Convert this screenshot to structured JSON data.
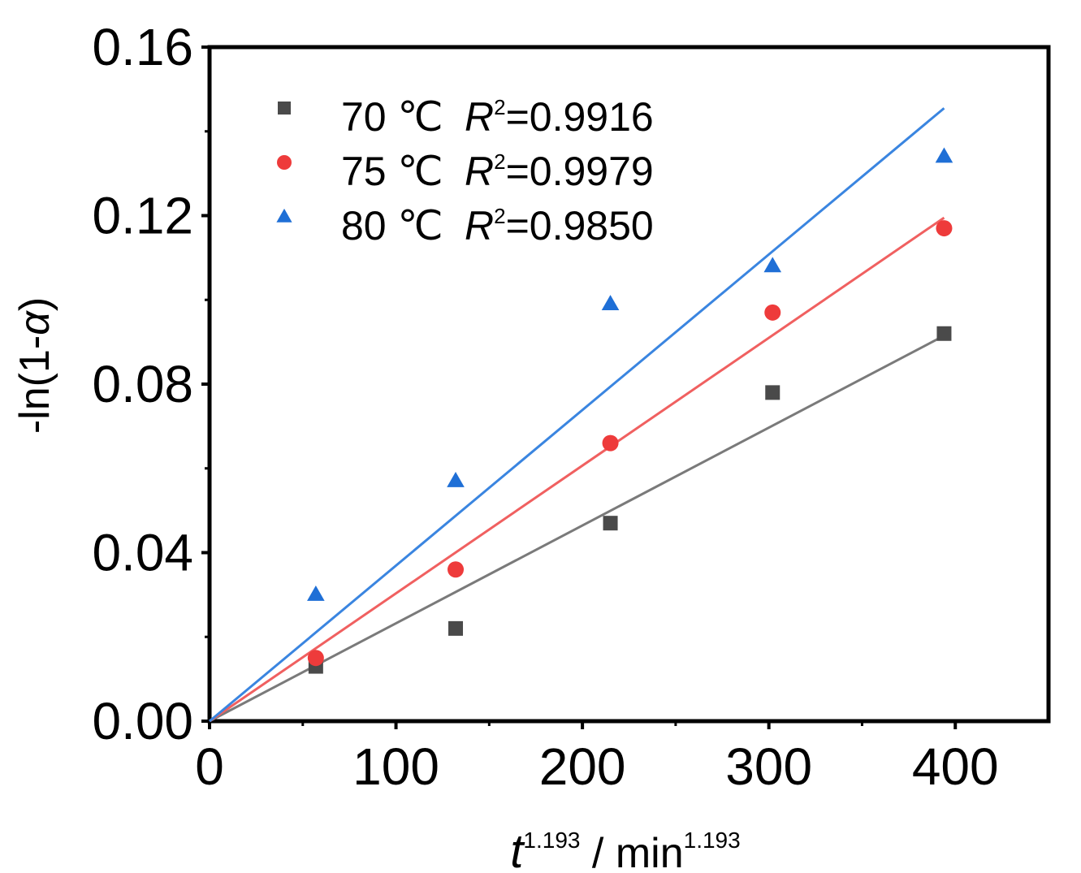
{
  "chart_data": {
    "type": "scatter",
    "title": "",
    "xlabel": {
      "base": "t",
      "base_sup": "1.193",
      "unit": " / min",
      "unit_sup": "1.193"
    },
    "ylabel": {
      "prefix": "-ln(1-",
      "symbol": "α",
      "suffix": ")"
    },
    "xlim": [
      0,
      450
    ],
    "ylim": [
      0,
      0.16
    ],
    "xticks": [
      0,
      100,
      200,
      300,
      400
    ],
    "xtick_labels": [
      "0",
      "100",
      "200",
      "300",
      "400"
    ],
    "yticks": [
      0,
      0.04,
      0.08,
      0.12,
      0.16
    ],
    "ytick_labels": [
      "0.00",
      "0.04",
      "0.08",
      "0.12",
      "0.16"
    ],
    "grid": false,
    "legend_position": "top-left",
    "series": [
      {
        "name": "70 ℃",
        "r2_label": "R",
        "r2_sup": "2",
        "r2_value": "=0.9916",
        "marker": "square",
        "color": "#4a4a4a",
        "line_color": "#7a7a7a",
        "x": [
          57,
          132,
          215,
          302,
          394
        ],
        "y": [
          0.013,
          0.022,
          0.047,
          0.078,
          0.092
        ],
        "fit": {
          "x": [
            0,
            394
          ],
          "y": [
            0,
            0.0915
          ]
        }
      },
      {
        "name": "75 ℃",
        "r2_label": "R",
        "r2_sup": "2",
        "r2_value": "=0.9979",
        "marker": "circle",
        "color": "#ee3b3b",
        "line_color": "#f06060",
        "x": [
          57,
          132,
          215,
          302,
          394
        ],
        "y": [
          0.015,
          0.036,
          0.066,
          0.097,
          0.117
        ],
        "fit": {
          "x": [
            0,
            394
          ],
          "y": [
            0,
            0.1195
          ]
        }
      },
      {
        "name": "80 ℃",
        "r2_label": "R",
        "r2_sup": "2",
        "r2_value": "=0.9850",
        "marker": "triangle",
        "color": "#1f6fd6",
        "line_color": "#3a85e0",
        "x": [
          57,
          132,
          215,
          302,
          394
        ],
        "y": [
          0.03,
          0.057,
          0.099,
          0.108,
          0.134
        ],
        "fit": {
          "x": [
            0,
            394
          ],
          "y": [
            0,
            0.1455
          ]
        }
      }
    ]
  }
}
